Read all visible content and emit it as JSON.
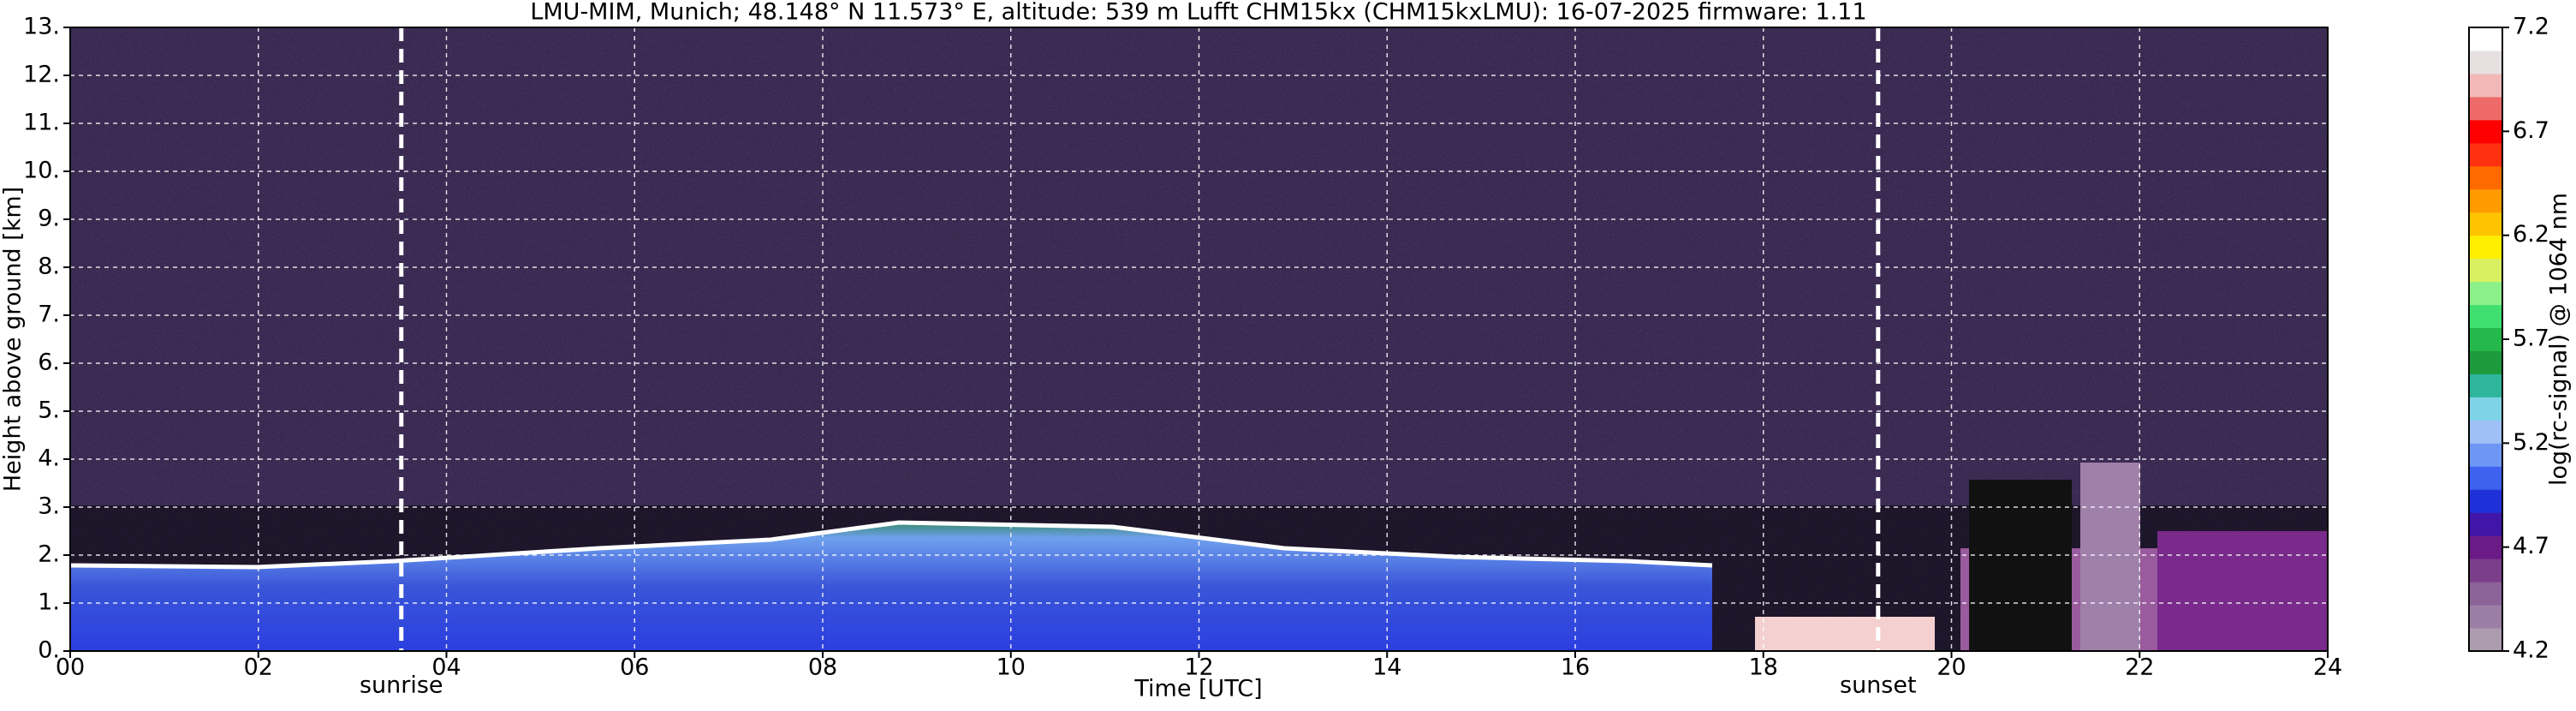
{
  "chart_data": {
    "type": "heatmap",
    "title": "LMU-MIM, Munich; 48.148° N 11.573° E, altitude: 539 m    Lufft CHM15kx (CHM15kxLMU): 16-07-2025    firmware: 1.11",
    "xlabel": "Time [UTC]",
    "ylabel": "Height above ground [km]",
    "xlim": [
      0,
      24
    ],
    "xticks": [
      {
        "value": 0,
        "label": "00"
      },
      {
        "value": 2,
        "label": "02"
      },
      {
        "value": 4,
        "label": "04"
      },
      {
        "value": 6,
        "label": "06"
      },
      {
        "value": 8,
        "label": "08"
      },
      {
        "value": 10,
        "label": "10"
      },
      {
        "value": 12,
        "label": "12"
      },
      {
        "value": 14,
        "label": "14"
      },
      {
        "value": 16,
        "label": "16"
      },
      {
        "value": 18,
        "label": "18"
      },
      {
        "value": 20,
        "label": "20"
      },
      {
        "value": 22,
        "label": "22"
      },
      {
        "value": 24,
        "label": "24"
      }
    ],
    "ylim": [
      0,
      13
    ],
    "yticks": [
      {
        "value": 0,
        "label": "0."
      },
      {
        "value": 1,
        "label": "1."
      },
      {
        "value": 2,
        "label": "2."
      },
      {
        "value": 3,
        "label": "3."
      },
      {
        "value": 4,
        "label": "4."
      },
      {
        "value": 5,
        "label": "5."
      },
      {
        "value": 6,
        "label": "6."
      },
      {
        "value": 7,
        "label": "7."
      },
      {
        "value": 8,
        "label": "8."
      },
      {
        "value": 9,
        "label": "9."
      },
      {
        "value": 10,
        "label": "10."
      },
      {
        "value": 11,
        "label": "11."
      },
      {
        "value": 12,
        "label": "12."
      },
      {
        "value": 13,
        "label": "13."
      }
    ],
    "grid": true,
    "annotations": [
      {
        "text": "sunrise",
        "x": 3.52
      },
      {
        "text": "sunset",
        "x": 19.22
      }
    ],
    "colorbar": {
      "label": "log(rc-signal) @ 1064 nm",
      "clim": [
        4.2,
        7.2
      ],
      "ticks": [
        4.2,
        4.7,
        5.2,
        5.7,
        6.2,
        6.7,
        7.2
      ],
      "colors": [
        "#ad9bb0",
        "#9c7ea4",
        "#8c6398",
        "#7b3f8a",
        "#6a1b86",
        "#3f16a8",
        "#2030d8",
        "#3e62ef",
        "#6e96f5",
        "#9ec0f7",
        "#7fd3e6",
        "#2fb59c",
        "#1c9a3c",
        "#25b84a",
        "#40e070",
        "#8bf08a",
        "#d8f060",
        "#ffee00",
        "#ffc400",
        "#ff9a00",
        "#ff6a00",
        "#ff3010",
        "#ff0000",
        "#ee6a6a",
        "#f2b8b8",
        "#e6e0e0",
        "#ffffff"
      ]
    }
  }
}
